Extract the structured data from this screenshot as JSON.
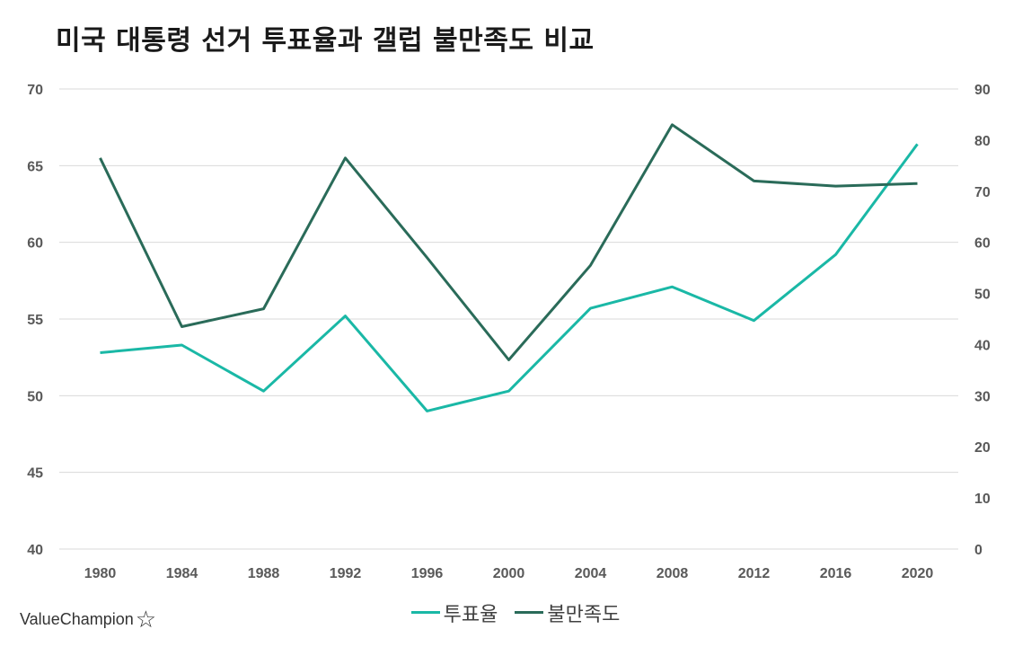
{
  "chart_data": {
    "type": "line",
    "title": "미국 대통령 선거 투표율과 갤럽 불만족도 비교",
    "categories": [
      "1980",
      "1984",
      "1988",
      "1992",
      "1996",
      "2000",
      "2004",
      "2008",
      "2012",
      "2016",
      "2020"
    ],
    "y_left": {
      "ylim": [
        40,
        70
      ],
      "ticks": [
        "40",
        "45",
        "50",
        "55",
        "60",
        "65",
        "70"
      ]
    },
    "y_right": {
      "ylim": [
        0,
        90
      ],
      "ticks": [
        "0",
        "10",
        "20",
        "30",
        "40",
        "50",
        "60",
        "70",
        "80",
        "90"
      ]
    },
    "grid": true,
    "legend_position": "bottom",
    "series": [
      {
        "name": "투표율",
        "axis": "left",
        "color": "#1ab8a6",
        "values": [
          52.8,
          53.3,
          50.3,
          55.2,
          49.0,
          50.3,
          55.7,
          57.1,
          54.9,
          59.2,
          66.4
        ]
      },
      {
        "name": "불만족도",
        "axis": "right",
        "color": "#2a6b59",
        "values": [
          76.5,
          43.5,
          47,
          76.5,
          57,
          37,
          55.5,
          83,
          72,
          71,
          71.5
        ]
      }
    ]
  },
  "branding": {
    "text": "ValueChampion",
    "icon": "star-outline-icon"
  }
}
